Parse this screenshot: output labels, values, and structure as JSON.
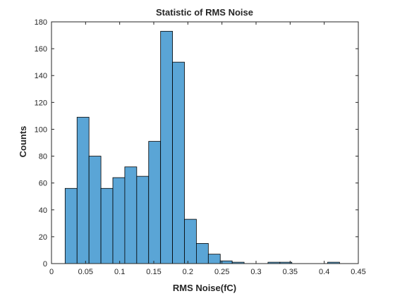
{
  "chart_data": {
    "type": "bar",
    "title": "Statistic of RMS Noise",
    "xlabel": "RMS Noise(fC)",
    "ylabel": "Counts",
    "xlim": [
      0,
      0.45
    ],
    "ylim": [
      0,
      180
    ],
    "xticks": [
      0,
      0.05,
      0.1,
      0.15,
      0.2,
      0.25,
      0.3,
      0.35,
      0.4,
      0.45
    ],
    "xtick_labels": [
      "0",
      "0.05",
      "0.1",
      "0.15",
      "0.2",
      "0.25",
      "0.3",
      "0.35",
      "0.4",
      "0.45"
    ],
    "yticks": [
      0,
      20,
      40,
      60,
      80,
      100,
      120,
      140,
      160,
      180
    ],
    "ytick_labels": [
      "0",
      "20",
      "40",
      "60",
      "80",
      "100",
      "120",
      "140",
      "160",
      "180"
    ],
    "grid": false,
    "bar_color": "#5aa5d6",
    "edge_color": "#000000",
    "bins": [
      {
        "start": 0.02,
        "end": 0.0375,
        "count": 56
      },
      {
        "start": 0.0375,
        "end": 0.055,
        "count": 109
      },
      {
        "start": 0.055,
        "end": 0.0725,
        "count": 80
      },
      {
        "start": 0.0725,
        "end": 0.09,
        "count": 56
      },
      {
        "start": 0.09,
        "end": 0.1075,
        "count": 64
      },
      {
        "start": 0.1075,
        "end": 0.125,
        "count": 72
      },
      {
        "start": 0.125,
        "end": 0.1425,
        "count": 65
      },
      {
        "start": 0.1425,
        "end": 0.16,
        "count": 91
      },
      {
        "start": 0.16,
        "end": 0.1775,
        "count": 173
      },
      {
        "start": 0.1775,
        "end": 0.195,
        "count": 150
      },
      {
        "start": 0.195,
        "end": 0.2125,
        "count": 33
      },
      {
        "start": 0.2125,
        "end": 0.23,
        "count": 15
      },
      {
        "start": 0.23,
        "end": 0.2475,
        "count": 7
      },
      {
        "start": 0.2475,
        "end": 0.265,
        "count": 2
      },
      {
        "start": 0.265,
        "end": 0.2825,
        "count": 1
      },
      {
        "start": 0.2825,
        "end": 0.3,
        "count": 0
      },
      {
        "start": 0.3,
        "end": 0.3175,
        "count": 0
      },
      {
        "start": 0.3175,
        "end": 0.335,
        "count": 1
      },
      {
        "start": 0.335,
        "end": 0.3525,
        "count": 1
      },
      {
        "start": 0.3525,
        "end": 0.37,
        "count": 0
      },
      {
        "start": 0.37,
        "end": 0.3875,
        "count": 0
      },
      {
        "start": 0.3875,
        "end": 0.405,
        "count": 0
      },
      {
        "start": 0.405,
        "end": 0.4225,
        "count": 1
      }
    ]
  }
}
